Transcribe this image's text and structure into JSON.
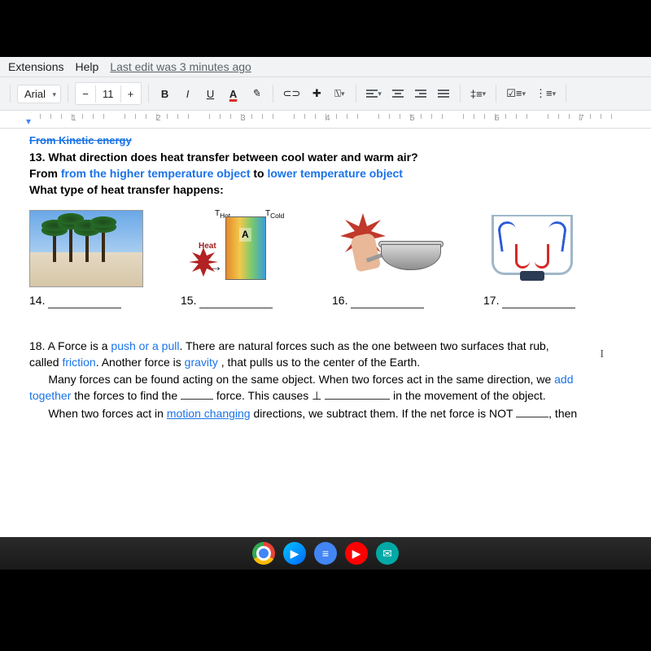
{
  "menu": {
    "extensions": "Extensions",
    "help": "Help",
    "last_edit": "Last edit was 3 minutes ago"
  },
  "toolbar": {
    "font": "Arial",
    "font_size": "11",
    "bold": "B",
    "italic": "I",
    "underline": "U",
    "textcolor": "A",
    "highlight": "✎",
    "link": "⊂⊃",
    "comment": "✚",
    "image": "⍂"
  },
  "ruler": {
    "marks": [
      "1",
      "2",
      "3",
      "4",
      "5",
      "6",
      "7"
    ]
  },
  "doc": {
    "crossed": "From Kinetic energy",
    "q13": "13. What direction does heat transfer between cool water and warm air?",
    "ans13_pre": "From ",
    "ans13_a": "from the higher temperature object",
    "ans13_mid": " to ",
    "ans13_b": "lower temperature object",
    "q_type": "What type of heat transfer happens:",
    "labels": {
      "heat": "Heat",
      "thot": "T",
      "thot_sub": "Hot",
      "tcold": "T",
      "tcold_sub": "Cold",
      "a": "A"
    },
    "n14": "14.",
    "n15": "15.",
    "n16": "16.",
    "n17": "17.",
    "p18_num": "18.   ",
    "p18_a": "A Force is a  ",
    "p18_push": "push or a pull",
    "p18_b": ". There are natural forces such as the one between two surfaces that rub,",
    "p18_c": "called ",
    "p18_friction": "friction",
    "p18_d": ".  Another force is ",
    "p18_gravity": "gravity",
    "p18_e": " , that pulls us to the center of the Earth.",
    "p18_f": "Many forces can be found acting on the same object.   When two forces act in the same direction, we ",
    "p18_add": "add",
    "p18_together": "together",
    "p18_g": " the forces to find the ",
    "p18_h": " force.  This causes ",
    "p18_i": " in the movement of the object.",
    "p18_j": "When two forces act in ",
    "p18_motion": "motion changing",
    "p18_k": " directions, we subtract them.  If the net force is NOT ",
    "p18_l": ", then"
  }
}
